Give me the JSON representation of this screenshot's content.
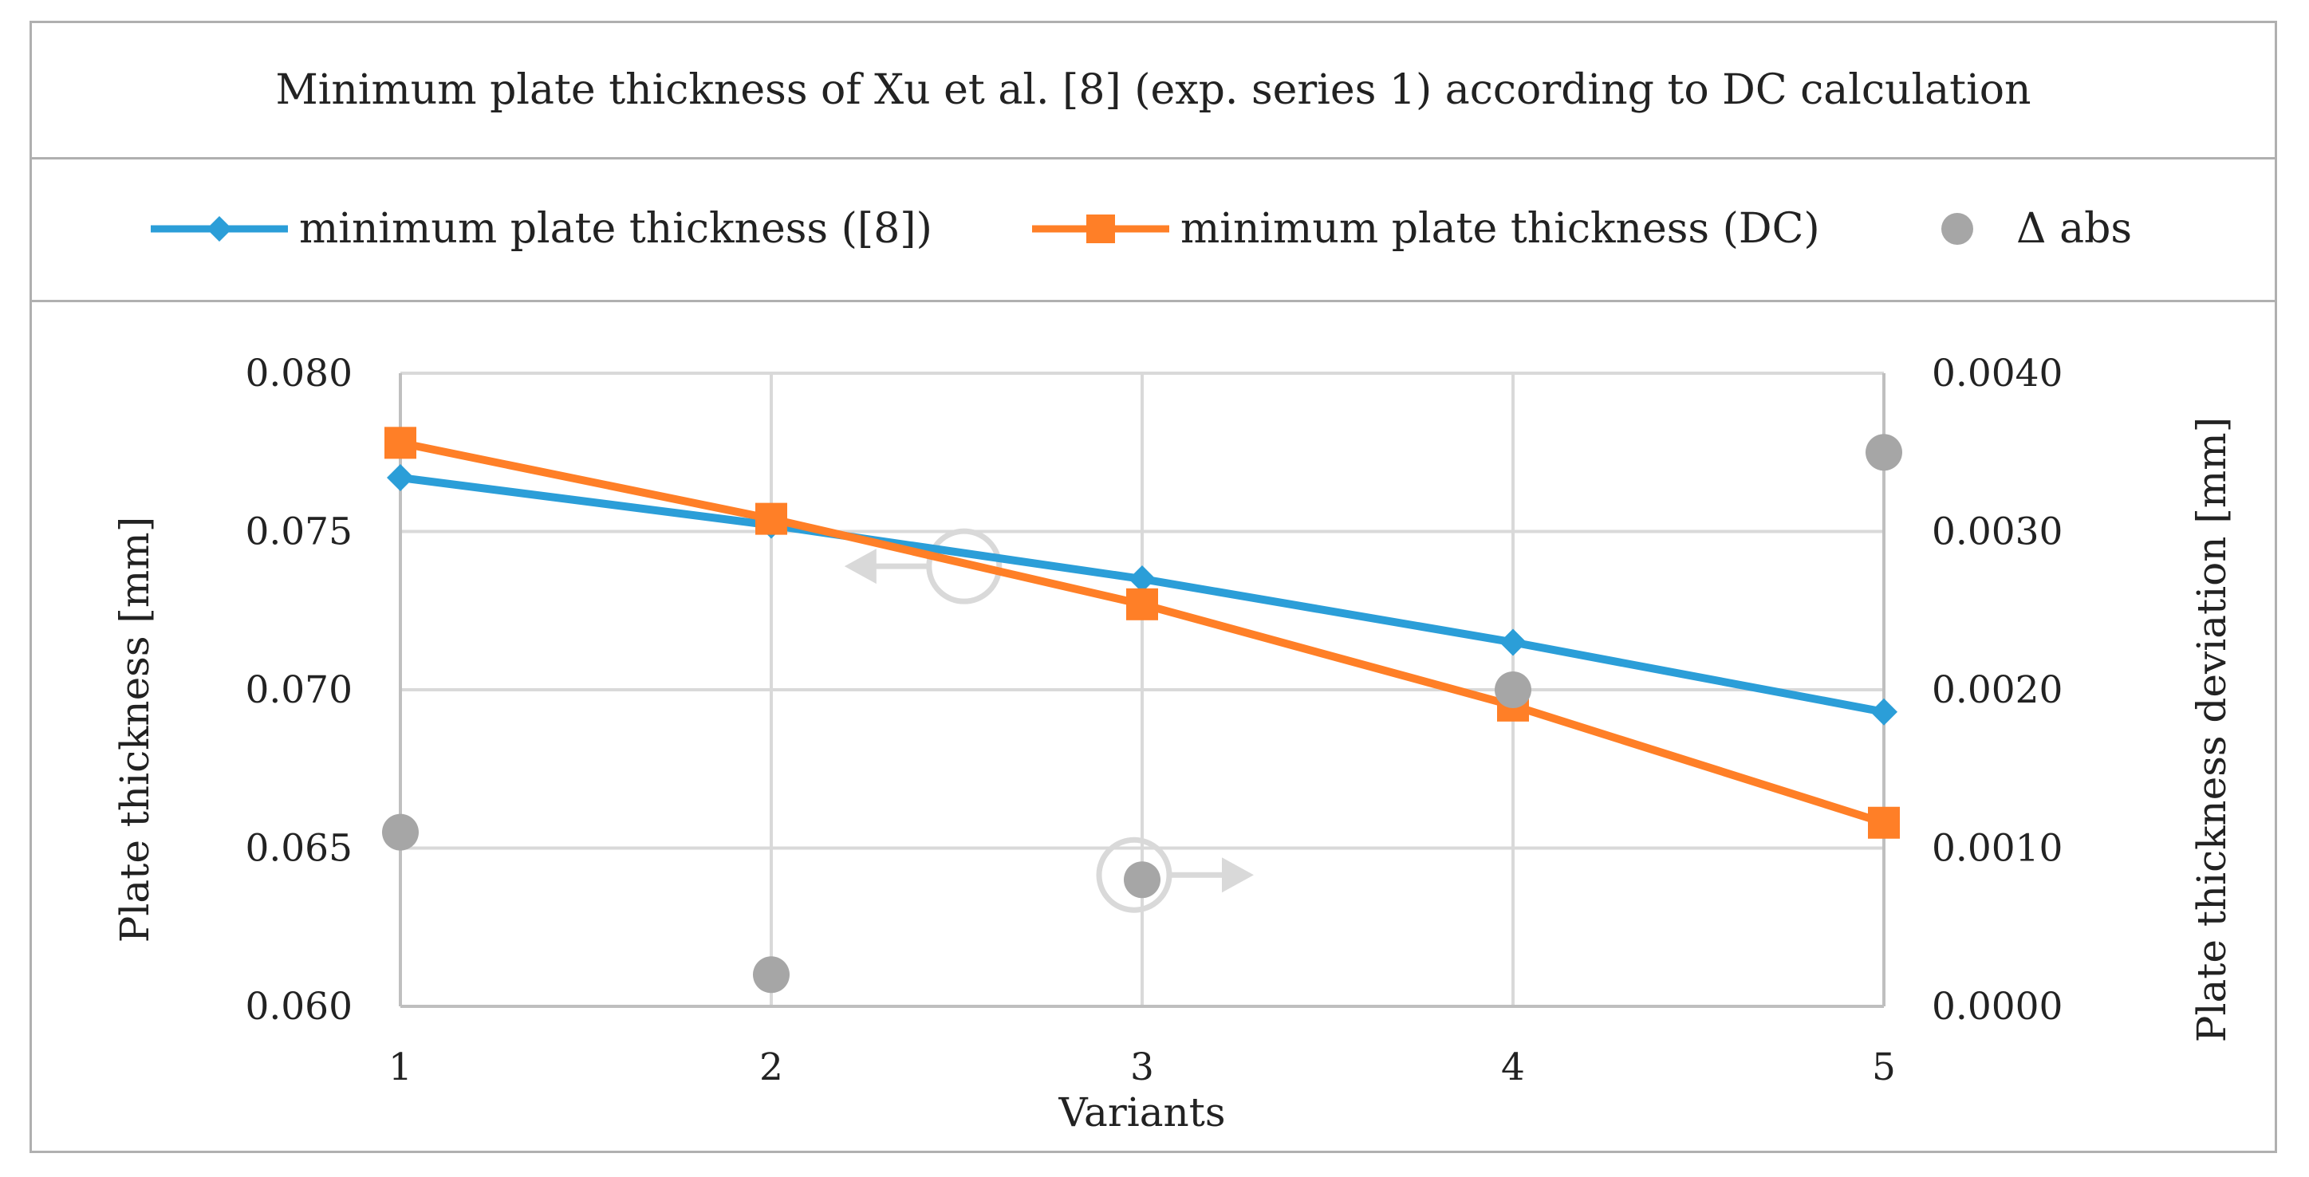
{
  "chart_data": {
    "type": "line",
    "title": "Minimum plate thickness of Xu et al. [8] (exp. series 1) according to DC calculation",
    "categories": [
      "1",
      "2",
      "3",
      "4",
      "5"
    ],
    "xlabel": "Variants",
    "ylabel": "Plate thickness [mm]",
    "y2label": "Plate thickness deviation [mm]",
    "ylim": [
      0.06,
      0.08
    ],
    "y2lim": [
      0.0,
      0.004
    ],
    "yticks": [
      "0.060",
      "0.065",
      "0.070",
      "0.075",
      "0.080"
    ],
    "y2ticks": [
      "0.0000",
      "0.0010",
      "0.0020",
      "0.0030",
      "0.0040"
    ],
    "grid": true,
    "legend_position": "top",
    "series": [
      {
        "name": "minimum plate thickness ([8])",
        "axis": "left",
        "marker": "diamond",
        "color": "#2b9ed8",
        "values": [
          0.0767,
          0.0752,
          0.0735,
          0.0715,
          0.0693
        ]
      },
      {
        "name": "minimum plate thickness (DC)",
        "axis": "left",
        "marker": "square",
        "color": "#ff7f27",
        "values": [
          0.0778,
          0.0754,
          0.0727,
          0.0695,
          0.0658
        ]
      },
      {
        "name": "Δ abs",
        "axis": "right",
        "marker": "circle",
        "color": "#a6a6a6",
        "values": [
          0.0011,
          0.0002,
          0.0008,
          0.002,
          0.0035
        ]
      }
    ],
    "annotations": [
      {
        "type": "circle-arrow",
        "points_to": "left-axis",
        "near_category": "2.5"
      },
      {
        "type": "circle-arrow",
        "points_to": "right-axis",
        "near_category": "3"
      }
    ]
  }
}
